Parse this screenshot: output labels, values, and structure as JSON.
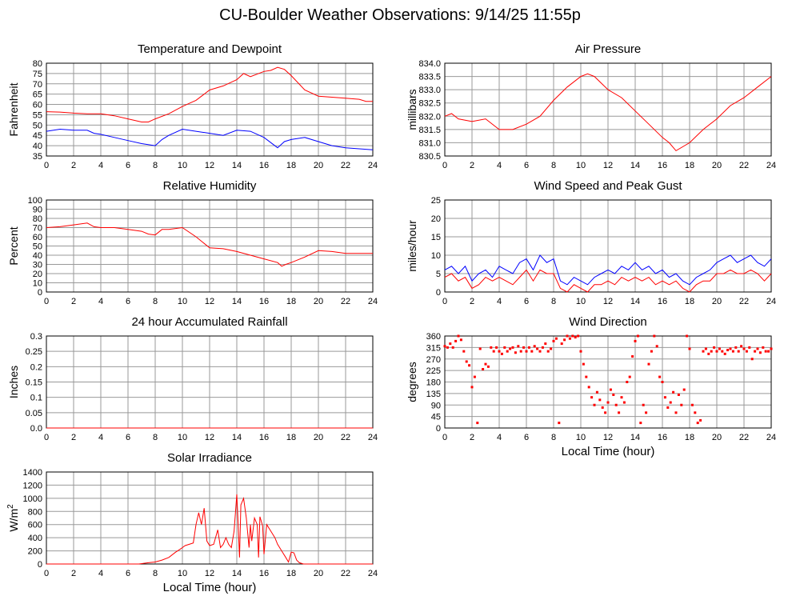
{
  "page": {
    "title": "CU-Boulder Weather Observations: 9/14/25 11:55p"
  },
  "colors": {
    "red": "#ff0000",
    "blue": "#0000ff",
    "grid": "#999999",
    "frame": "#000000"
  },
  "chart_data": [
    {
      "type": "line",
      "title": "Temperature and Dewpoint",
      "ylabel": "Fahrenheit",
      "xlabel": "",
      "xlim": [
        0,
        24
      ],
      "ylim": [
        35,
        80
      ],
      "xticks": [
        0,
        2,
        4,
        6,
        8,
        10,
        12,
        14,
        16,
        18,
        20,
        22,
        24
      ],
      "yticks": [
        35,
        40,
        45,
        50,
        55,
        60,
        65,
        70,
        75,
        80
      ],
      "ytick_decimals": 0,
      "grid": true,
      "series": [
        {
          "color": "#ff0000",
          "x": [
            0,
            1,
            2,
            3,
            4,
            5,
            6,
            7,
            7.5,
            8,
            9,
            10,
            11,
            12,
            13,
            14,
            14.5,
            15,
            16,
            16.5,
            17,
            17.5,
            18,
            19,
            20,
            21,
            22,
            23,
            23.5,
            24
          ],
          "y": [
            56.5,
            56.3,
            55.8,
            55.5,
            55.5,
            54.5,
            53,
            51.5,
            51.5,
            53,
            55.5,
            59,
            62,
            67,
            69,
            72,
            75,
            73.5,
            76,
            76.5,
            78,
            77,
            74,
            67,
            64,
            63.5,
            63,
            62.5,
            61.5,
            61.5
          ]
        },
        {
          "color": "#0000ff",
          "x": [
            0,
            1,
            2,
            3,
            3.5,
            4,
            5,
            6,
            7,
            8,
            8.5,
            9,
            10,
            11,
            12,
            13,
            14,
            15,
            16,
            17,
            17.5,
            18,
            19,
            20,
            21,
            22,
            23,
            24
          ],
          "y": [
            47,
            48,
            47.5,
            47.5,
            46,
            45.5,
            44,
            42.5,
            41,
            40,
            43,
            45,
            48,
            47,
            46,
            45,
            47.5,
            47,
            44,
            39,
            42,
            43,
            44,
            42,
            40,
            39,
            38.5,
            38
          ]
        }
      ]
    },
    {
      "type": "line",
      "title": "Air Pressure",
      "ylabel": "millibars",
      "xlabel": "",
      "xlim": [
        0,
        24
      ],
      "ylim": [
        830.5,
        834.0
      ],
      "xticks": [
        0,
        2,
        4,
        6,
        8,
        10,
        12,
        14,
        16,
        18,
        20,
        22,
        24
      ],
      "yticks": [
        830.5,
        831.0,
        831.5,
        832.0,
        832.5,
        833.0,
        833.5,
        834.0
      ],
      "ytick_decimals": 1,
      "grid": true,
      "series": [
        {
          "color": "#ff0000",
          "x": [
            0,
            0.5,
            1,
            2,
            3,
            4,
            5,
            6,
            7,
            8,
            9,
            10,
            10.5,
            11,
            12,
            13,
            14,
            15,
            16,
            16.5,
            17,
            18,
            19,
            20,
            21,
            22,
            23,
            24
          ],
          "y": [
            832.0,
            832.1,
            831.9,
            831.8,
            831.9,
            831.5,
            831.5,
            831.7,
            832.0,
            832.6,
            833.1,
            833.5,
            833.6,
            833.5,
            833.0,
            832.7,
            832.2,
            831.7,
            831.2,
            831.0,
            830.7,
            831.0,
            831.5,
            831.9,
            832.4,
            832.7,
            833.1,
            833.5
          ]
        }
      ]
    },
    {
      "type": "line",
      "title": "Relative Humidity",
      "ylabel": "Percent",
      "xlabel": "",
      "xlim": [
        0,
        24
      ],
      "ylim": [
        0,
        100
      ],
      "xticks": [
        0,
        2,
        4,
        6,
        8,
        10,
        12,
        14,
        16,
        18,
        20,
        22,
        24
      ],
      "yticks": [
        0,
        10,
        20,
        30,
        40,
        50,
        60,
        70,
        80,
        90,
        100
      ],
      "ytick_decimals": 0,
      "grid": true,
      "series": [
        {
          "color": "#ff0000",
          "x": [
            0,
            1,
            2,
            3,
            3.5,
            4,
            5,
            6,
            7,
            7.5,
            8,
            8.5,
            9,
            10,
            11,
            12,
            13,
            14,
            15,
            16,
            17,
            17.3,
            17.6,
            18,
            19,
            20,
            21,
            22,
            23,
            24
          ],
          "y": [
            70,
            71,
            73,
            75,
            71,
            70,
            70,
            68,
            66,
            63,
            62,
            68,
            68,
            70,
            60,
            48,
            47,
            44,
            40,
            36,
            32,
            28,
            30,
            32,
            38,
            45,
            44,
            42,
            42,
            42
          ]
        }
      ]
    },
    {
      "type": "line",
      "title": "Wind Speed and Peak Gust",
      "ylabel": "miles/hour",
      "xlabel": "",
      "xlim": [
        0,
        24
      ],
      "ylim": [
        0,
        25
      ],
      "xticks": [
        0,
        2,
        4,
        6,
        8,
        10,
        12,
        14,
        16,
        18,
        20,
        22,
        24
      ],
      "yticks": [
        0,
        5,
        10,
        15,
        20,
        25
      ],
      "ytick_decimals": 0,
      "grid": true,
      "series": [
        {
          "color": "#0000ff",
          "x": [
            0,
            0.5,
            1,
            1.5,
            2,
            2.5,
            3,
            3.5,
            4,
            4.5,
            5,
            5.5,
            6,
            6.5,
            7,
            7.5,
            8,
            8.5,
            9,
            9.5,
            10,
            10.5,
            11,
            11.5,
            12,
            12.5,
            13,
            13.5,
            14,
            14.5,
            15,
            15.5,
            16,
            16.5,
            17,
            17.5,
            18,
            18.5,
            19,
            19.5,
            20,
            20.5,
            21,
            21.5,
            22,
            22.5,
            23,
            23.5,
            24
          ],
          "y": [
            6,
            7,
            5,
            7,
            3,
            5,
            6,
            4,
            7,
            6,
            5,
            8,
            9,
            6,
            10,
            8,
            9,
            3,
            2,
            4,
            3,
            2,
            4,
            5,
            6,
            5,
            7,
            6,
            8,
            6,
            7,
            5,
            6,
            4,
            5,
            3,
            2,
            4,
            5,
            6,
            8,
            9,
            10,
            8,
            9,
            10,
            8,
            7,
            9
          ]
        },
        {
          "color": "#ff0000",
          "x": [
            0,
            0.5,
            1,
            1.5,
            2,
            2.5,
            3,
            3.5,
            4,
            4.5,
            5,
            5.5,
            6,
            6.5,
            7,
            7.5,
            8,
            8.5,
            9,
            9.5,
            10,
            10.5,
            11,
            11.5,
            12,
            12.5,
            13,
            13.5,
            14,
            14.5,
            15,
            15.5,
            16,
            16.5,
            17,
            17.5,
            18,
            18.5,
            19,
            19.5,
            20,
            20.5,
            21,
            21.5,
            22,
            22.5,
            23,
            23.5,
            24
          ],
          "y": [
            4,
            5,
            3,
            4,
            1,
            2,
            4,
            3,
            4,
            3,
            2,
            4,
            6,
            3,
            6,
            5,
            5,
            1,
            0,
            2,
            1,
            0,
            2,
            2,
            3,
            2,
            4,
            3,
            4,
            3,
            4,
            2,
            3,
            2,
            3,
            1,
            0,
            2,
            3,
            3,
            5,
            5,
            6,
            5,
            5,
            6,
            5,
            3,
            5
          ]
        }
      ]
    },
    {
      "type": "line",
      "title": "24 hour Accumulated Rainfall",
      "ylabel": "Inches",
      "xlabel": "",
      "xlim": [
        0,
        24
      ],
      "ylim": [
        0,
        0.3
      ],
      "xticks": [
        0,
        2,
        4,
        6,
        8,
        10,
        12,
        14,
        16,
        18,
        20,
        22,
        24
      ],
      "yticks": [
        0.0,
        0.05,
        0.1,
        0.15,
        0.2,
        0.25,
        0.3
      ],
      "ytick_labels": [
        "0.0",
        "0.05",
        "0.1",
        "0.15",
        "0.2",
        "0.25",
        "0.3"
      ],
      "grid": true,
      "series": [
        {
          "color": "#ff0000",
          "x": [
            0,
            24
          ],
          "y": [
            0,
            0
          ]
        }
      ]
    },
    {
      "type": "scatter",
      "title": "Wind Direction",
      "ylabel": "degrees",
      "xlabel": "Local Time (hour)",
      "xlim": [
        0,
        24
      ],
      "ylim": [
        0,
        360
      ],
      "xticks": [
        0,
        2,
        4,
        6,
        8,
        10,
        12,
        14,
        16,
        18,
        20,
        22,
        24
      ],
      "yticks": [
        0,
        45,
        90,
        135,
        180,
        225,
        270,
        315,
        360
      ],
      "ytick_decimals": 0,
      "grid": true,
      "series": [
        {
          "color": "#ff0000",
          "x": [
            0,
            0.2,
            0.4,
            0.6,
            0.8,
            1,
            1.2,
            1.4,
            1.6,
            1.8,
            2,
            2.2,
            2.4,
            2.6,
            2.8,
            3,
            3.2,
            3.4,
            3.6,
            3.8,
            4,
            4.2,
            4.4,
            4.6,
            4.8,
            5,
            5.2,
            5.4,
            5.6,
            5.8,
            6,
            6.2,
            6.4,
            6.6,
            6.8,
            7,
            7.2,
            7.4,
            7.6,
            7.8,
            8,
            8.2,
            8.4,
            8.6,
            8.8,
            9,
            9.2,
            9.4,
            9.6,
            9.8,
            10,
            10.2,
            10.4,
            10.6,
            10.8,
            11,
            11.2,
            11.4,
            11.6,
            11.8,
            12,
            12.2,
            12.4,
            12.6,
            12.8,
            13,
            13.2,
            13.4,
            13.6,
            13.8,
            14,
            14.2,
            14.4,
            14.6,
            14.8,
            15,
            15.2,
            15.4,
            15.6,
            15.8,
            16,
            16.2,
            16.4,
            16.6,
            16.8,
            17,
            17.2,
            17.4,
            17.6,
            17.8,
            18,
            18.2,
            18.4,
            18.6,
            18.8,
            19,
            19.2,
            19.4,
            19.6,
            19.8,
            20,
            20.2,
            20.4,
            20.6,
            20.8,
            21,
            21.2,
            21.4,
            21.6,
            21.8,
            22,
            22.2,
            22.4,
            22.6,
            22.8,
            23,
            23.2,
            23.4,
            23.6,
            23.8,
            24
          ],
          "y": [
            320,
            315,
            330,
            315,
            340,
            360,
            345,
            300,
            260,
            245,
            160,
            200,
            20,
            310,
            230,
            250,
            240,
            315,
            300,
            315,
            300,
            290,
            315,
            300,
            310,
            315,
            295,
            320,
            300,
            315,
            300,
            315,
            300,
            320,
            310,
            300,
            315,
            330,
            300,
            310,
            340,
            350,
            20,
            330,
            345,
            360,
            350,
            360,
            355,
            360,
            300,
            250,
            200,
            160,
            120,
            90,
            140,
            110,
            80,
            60,
            100,
            150,
            130,
            90,
            60,
            120,
            100,
            180,
            200,
            280,
            340,
            360,
            20,
            90,
            60,
            250,
            300,
            360,
            320,
            200,
            180,
            120,
            80,
            100,
            140,
            60,
            130,
            90,
            150,
            360,
            310,
            90,
            60,
            20,
            30,
            300,
            310,
            290,
            300,
            315,
            300,
            310,
            300,
            290,
            305,
            310,
            300,
            315,
            300,
            320,
            310,
            300,
            315,
            270,
            300,
            310,
            295,
            315,
            300,
            300,
            310
          ]
        }
      ]
    },
    {
      "type": "line",
      "title": "Solar Irradiance",
      "ylabel": "W/m",
      "ylabel_sup": "2",
      "xlabel": "Local Time (hour)",
      "xlim": [
        0,
        24
      ],
      "ylim": [
        0,
        1400
      ],
      "xticks": [
        0,
        2,
        4,
        6,
        8,
        10,
        12,
        14,
        16,
        18,
        20,
        22,
        24
      ],
      "yticks": [
        0,
        200,
        400,
        600,
        800,
        1000,
        1200,
        1400
      ],
      "ytick_decimals": 0,
      "grid": true,
      "series": [
        {
          "color": "#ff0000",
          "x": [
            0,
            6.8,
            7.5,
            8,
            8.5,
            9,
            9.5,
            9.8,
            10,
            10.2,
            10.5,
            10.8,
            11,
            11.2,
            11.4,
            11.6,
            11.8,
            12,
            12.3,
            12.6,
            12.8,
            13,
            13.2,
            13.4,
            13.6,
            13.8,
            14,
            14.1,
            14.2,
            14.3,
            14.5,
            14.7,
            14.9,
            15,
            15.1,
            15.3,
            15.5,
            15.6,
            15.7,
            15.9,
            16,
            16.2,
            16.5,
            16.8,
            17,
            17.3,
            17.6,
            17.8,
            18,
            18.2,
            18.4,
            18.6,
            18.9,
            19.2,
            24
          ],
          "y": [
            0,
            0,
            20,
            30,
            60,
            100,
            180,
            220,
            250,
            280,
            300,
            320,
            600,
            780,
            600,
            850,
            350,
            280,
            300,
            520,
            250,
            300,
            400,
            300,
            250,
            500,
            1060,
            600,
            100,
            900,
            1000,
            700,
            250,
            600,
            350,
            700,
            600,
            100,
            720,
            580,
            150,
            600,
            500,
            400,
            300,
            200,
            100,
            30,
            180,
            170,
            60,
            20,
            0,
            0,
            0
          ]
        }
      ]
    }
  ]
}
